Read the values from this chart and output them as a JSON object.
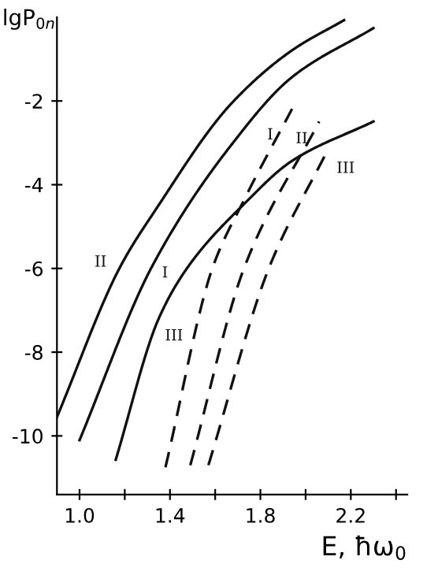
{
  "chart_data": {
    "type": "line",
    "xlabel": "E, ħω$_{0}$",
    "ylabel": "lgP$_{0n}$",
    "xlim": [
      0.9,
      2.45
    ],
    "ylim": [
      -11.4,
      0
    ],
    "xticks": [
      {
        "value": 1.0,
        "label": "1.0"
      },
      {
        "value": 1.2,
        "label": null
      },
      1.4,
      {
        "value": 1.6,
        "label": null
      },
      1.8,
      {
        "value": 2.0,
        "label": null
      },
      2.2,
      {
        "value": 2.4,
        "label": null
      }
    ],
    "yticks": [
      -10,
      -8,
      -6,
      -4,
      -2
    ],
    "grid": false,
    "legend": false,
    "series": [
      {
        "name": "II",
        "color": "#111111",
        "line_style": "solid",
        "x": [
          0.9,
          1.18,
          1.34,
          1.67,
          1.94,
          2.17
        ],
        "values": [
          -9.55,
          -5.96,
          -4.57,
          -2.07,
          -0.79,
          -0.07
        ]
      },
      {
        "name": "I",
        "color": "#111111",
        "line_style": "solid",
        "x": [
          1.0,
          1.32,
          1.67,
          1.94,
          2.3
        ],
        "values": [
          -10.1,
          -5.96,
          -3.06,
          -1.43,
          -0.26
        ]
      },
      {
        "name": "III",
        "color": "#111111",
        "line_style": "solid",
        "x": [
          1.16,
          1.35,
          1.48,
          1.73,
          1.94,
          2.3
        ],
        "values": [
          -10.57,
          -7.2,
          -5.96,
          -4.45,
          -3.43,
          -2.49
        ]
      },
      {
        "name": "I",
        "color": "#111111",
        "line_style": "dashed",
        "x": [
          1.38,
          1.59,
          1.73,
          1.94
        ],
        "values": [
          -10.75,
          -5.96,
          -4.34,
          -2.19
        ]
      },
      {
        "name": "II",
        "color": "#111111",
        "line_style": "dashed",
        "x": [
          1.49,
          1.73,
          2.06
        ],
        "values": [
          -10.7,
          -5.96,
          -2.49
        ]
      },
      {
        "name": "III",
        "color": "#111111",
        "line_style": "dashed",
        "x": [
          1.57,
          1.84,
          2.09
        ],
        "values": [
          -10.7,
          -5.96,
          -3.25
        ]
      }
    ]
  }
}
